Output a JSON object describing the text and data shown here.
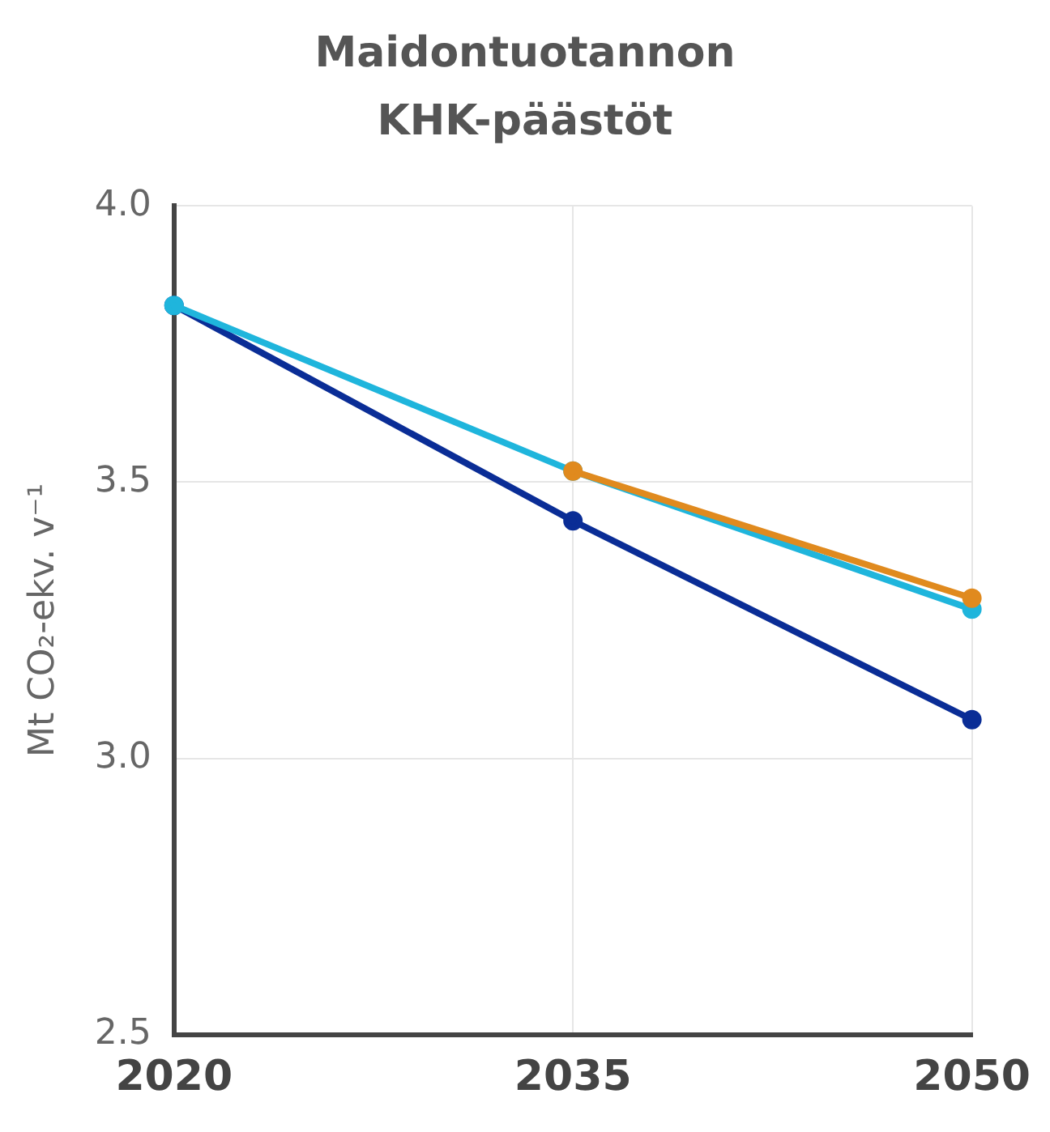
{
  "chart_data": {
    "type": "line",
    "title": "Maidontuotannon KHK-päästöt",
    "ylabel": "Mt CO₂-ekv. v⁻¹",
    "categories": [
      "2020",
      "2035",
      "2050"
    ],
    "series": [
      {
        "color": "#e08a1e",
        "values": [
          null,
          3.52,
          3.29
        ]
      },
      {
        "color": "#1fb5dc",
        "values": [
          3.82,
          3.52,
          3.27
        ]
      },
      {
        "color": "#0a2d96",
        "values": [
          3.82,
          3.43,
          3.07
        ]
      }
    ],
    "ylim": [
      2.5,
      4.0
    ],
    "yticks": [
      2.5,
      {
        "value": 3,
        "label": "3.0"
      },
      3.5,
      {
        "value": 4,
        "label": "4.0"
      }
    ],
    "grid": true,
    "legend": false,
    "marker": "circle",
    "line_style": "solid"
  }
}
